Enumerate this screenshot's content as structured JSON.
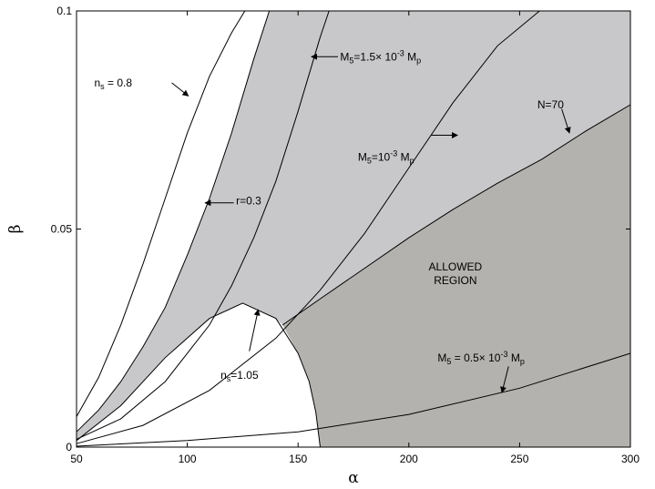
{
  "chart_data": {
    "type": "line",
    "xlabel": "α",
    "ylabel": "β",
    "xlim": [
      50,
      300
    ],
    "ylim": [
      0,
      0.1
    ],
    "x_ticks": [
      "50",
      "100",
      "150",
      "200",
      "250",
      "300"
    ],
    "y_ticks": [
      "0",
      "0.05",
      "0.1"
    ],
    "grid": false,
    "colors": {
      "light_region": "#c8c8ca",
      "dark_region": "#b3b2ae",
      "curve": "#000000"
    },
    "regions": [
      {
        "label_lines": [
          "ALLOWED",
          "REGION"
        ],
        "fill": "dark"
      }
    ],
    "series": [
      {
        "id": "ns08",
        "x": [
          50,
          60,
          70,
          80,
          90,
          100,
          110,
          120,
          126
        ],
        "y": [
          0.007,
          0.016,
          0.028,
          0.042,
          0.057,
          0.072,
          0.085,
          0.095,
          0.1
        ]
      },
      {
        "id": "r03",
        "x": [
          50,
          60,
          70,
          80,
          90,
          100,
          110,
          120,
          130,
          137
        ],
        "y": [
          0.0035,
          0.0085,
          0.015,
          0.023,
          0.032,
          0.044,
          0.057,
          0.072,
          0.089,
          0.1
        ]
      },
      {
        "id": "m15",
        "x": [
          50,
          70,
          90,
          110,
          120,
          130,
          140,
          150,
          160,
          164
        ],
        "y": [
          0.0018,
          0.0065,
          0.015,
          0.028,
          0.037,
          0.048,
          0.061,
          0.077,
          0.094,
          0.1
        ]
      },
      {
        "id": "m10",
        "x": [
          50,
          80,
          110,
          140,
          160,
          180,
          200,
          220,
          240,
          259
        ],
        "y": [
          0.0008,
          0.005,
          0.013,
          0.025,
          0.036,
          0.049,
          0.064,
          0.079,
          0.092,
          0.1
        ]
      },
      {
        "id": "m05",
        "x": [
          50,
          100,
          150,
          200,
          250,
          300
        ],
        "y": [
          0.0002,
          0.0015,
          0.0035,
          0.0075,
          0.0135,
          0.0215
        ]
      },
      {
        "id": "n70",
        "x": [
          143,
          160,
          180,
          200,
          220,
          240,
          260,
          280,
          300
        ],
        "y": [
          0.028,
          0.034,
          0.041,
          0.048,
          0.0545,
          0.0605,
          0.066,
          0.0725,
          0.0785
        ]
      },
      {
        "id": "ns105",
        "x": [
          50,
          70,
          90,
          110,
          125,
          140,
          150,
          155,
          158,
          160
        ],
        "y": [
          0.0015,
          0.0095,
          0.0205,
          0.0295,
          0.033,
          0.0295,
          0.0215,
          0.015,
          0.008,
          0
        ]
      }
    ],
    "annotations": [
      {
        "id": "a-ns08",
        "lines": [
          [
            "n",
            ""
          ],
          [
            "s",
            "sub"
          ],
          [
            " = 0.8",
            ""
          ]
        ],
        "tip": [
          100.5,
          0.0805
        ],
        "from": [
          93,
          0.0835
        ],
        "text_at": [
          58,
          0.0835
        ],
        "anchor": "start"
      },
      {
        "id": "a-r03",
        "lines": [
          [
            "r=0.3",
            ""
          ]
        ],
        "tip": [
          108,
          0.056
        ],
        "from": [
          121,
          0.056
        ],
        "text_at": [
          122,
          0.0565
        ],
        "anchor": "start"
      },
      {
        "id": "a-m15",
        "lines": [
          [
            "M",
            ""
          ],
          [
            "5",
            "sub"
          ],
          [
            "=1.5× 10",
            ""
          ],
          [
            "-3",
            "sup"
          ],
          [
            " M",
            ""
          ],
          [
            "p",
            "sub"
          ]
        ],
        "tip": [
          156,
          0.0895
        ],
        "from": [
          168,
          0.0895
        ],
        "text_at": [
          169,
          0.0895
        ],
        "anchor": "start"
      },
      {
        "id": "a-m10",
        "lines": [
          [
            "M",
            ""
          ],
          [
            "5",
            "sub"
          ],
          [
            "=10",
            ""
          ],
          [
            "-3",
            "sup"
          ],
          [
            " M",
            ""
          ],
          [
            "p",
            "sub"
          ]
        ],
        "tip": [
          222,
          0.0715
        ],
        "from": [
          210,
          0.0715
        ],
        "text_at": [
          177,
          0.0665
        ],
        "anchor": "start"
      },
      {
        "id": "a-n70",
        "lines": [
          [
            "N=70",
            ""
          ]
        ],
        "tip": [
          272.5,
          0.072
        ],
        "from": [
          269,
          0.0775
        ],
        "text_at": [
          258,
          0.0785
        ],
        "anchor": "start"
      },
      {
        "id": "a-ns105",
        "lines": [
          [
            "n",
            ""
          ],
          [
            "s",
            "sub"
          ],
          [
            "=1.05",
            ""
          ]
        ],
        "tip": [
          132,
          0.0315
        ],
        "from": [
          128,
          0.022
        ],
        "text_at": [
          115,
          0.0165
        ],
        "anchor": "start"
      },
      {
        "id": "a-m05",
        "lines": [
          [
            "M",
            ""
          ],
          [
            "5",
            "sub"
          ],
          [
            " = 0.5× 10",
            ""
          ],
          [
            "-3",
            "sup"
          ],
          [
            " M",
            ""
          ],
          [
            "p",
            "sub"
          ]
        ],
        "tip": [
          242,
          0.0125
        ],
        "from": [
          245,
          0.0185
        ],
        "text_at": [
          213,
          0.0205
        ],
        "anchor": "start"
      }
    ]
  }
}
